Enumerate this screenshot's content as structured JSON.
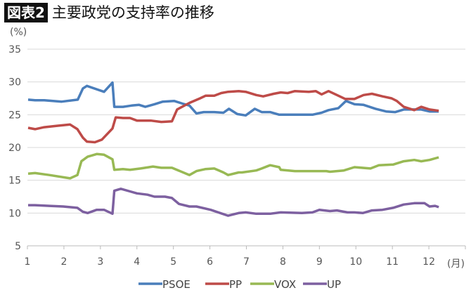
{
  "header": {
    "badge": "図表2",
    "title": "主要政党の支持率の推移"
  },
  "chart_data": {
    "type": "line",
    "title": "主要政党の支持率の推移",
    "ylabel": "(%)",
    "xlabel": "(月)",
    "ylim": [
      5,
      35
    ],
    "yticks": [
      "5",
      "10",
      "15",
      "20",
      "25",
      "30",
      "35"
    ],
    "xlim": [
      1,
      13
    ],
    "xticks": [
      "1",
      "2",
      "3",
      "4",
      "5",
      "6",
      "7",
      "8",
      "9",
      "10",
      "11",
      "12"
    ],
    "grid": true,
    "legend": "bottom",
    "series": [
      {
        "name": "PSOE",
        "color": "#4a7ebb",
        "points": [
          [
            1.02,
            27.3
          ],
          [
            1.21,
            27.2
          ],
          [
            1.46,
            27.2
          ],
          [
            1.94,
            27.0
          ],
          [
            2.38,
            27.3
          ],
          [
            2.52,
            29.0
          ],
          [
            2.63,
            29.4
          ],
          [
            3.1,
            28.5
          ],
          [
            3.33,
            29.9
          ],
          [
            3.38,
            26.2
          ],
          [
            3.62,
            26.2
          ],
          [
            3.85,
            26.4
          ],
          [
            4.06,
            26.5
          ],
          [
            4.23,
            26.2
          ],
          [
            4.48,
            26.6
          ],
          [
            4.71,
            27.0
          ],
          [
            5.02,
            27.1
          ],
          [
            5.25,
            26.7
          ],
          [
            5.44,
            26.4
          ],
          [
            5.63,
            25.2
          ],
          [
            5.83,
            25.4
          ],
          [
            6.12,
            25.4
          ],
          [
            6.37,
            25.3
          ],
          [
            6.52,
            25.9
          ],
          [
            6.75,
            25.1
          ],
          [
            6.98,
            24.9
          ],
          [
            7.23,
            25.9
          ],
          [
            7.42,
            25.4
          ],
          [
            7.65,
            25.4
          ],
          [
            7.9,
            25.0
          ],
          [
            8.81,
            25.0
          ],
          [
            9.06,
            25.3
          ],
          [
            9.25,
            25.7
          ],
          [
            9.52,
            26.0
          ],
          [
            9.73,
            27.1
          ],
          [
            9.96,
            26.6
          ],
          [
            10.21,
            26.5
          ],
          [
            10.54,
            25.9
          ],
          [
            10.83,
            25.5
          ],
          [
            11.08,
            25.4
          ],
          [
            11.31,
            25.8
          ],
          [
            11.79,
            25.8
          ],
          [
            12.02,
            25.5
          ],
          [
            12.27,
            25.5
          ]
        ]
      },
      {
        "name": "PP",
        "color": "#be4b48",
        "points": [
          [
            1.02,
            23.0
          ],
          [
            1.21,
            22.8
          ],
          [
            1.46,
            23.1
          ],
          [
            1.79,
            23.3
          ],
          [
            2.17,
            23.5
          ],
          [
            2.37,
            22.8
          ],
          [
            2.52,
            21.5
          ],
          [
            2.63,
            20.9
          ],
          [
            2.85,
            20.8
          ],
          [
            3.04,
            21.2
          ],
          [
            3.33,
            22.9
          ],
          [
            3.42,
            24.6
          ],
          [
            3.62,
            24.5
          ],
          [
            3.81,
            24.5
          ],
          [
            4.0,
            24.1
          ],
          [
            4.38,
            24.1
          ],
          [
            4.67,
            23.9
          ],
          [
            4.96,
            24.0
          ],
          [
            5.1,
            25.8
          ],
          [
            5.44,
            26.8
          ],
          [
            5.73,
            27.5
          ],
          [
            5.88,
            27.9
          ],
          [
            6.12,
            27.9
          ],
          [
            6.31,
            28.3
          ],
          [
            6.5,
            28.5
          ],
          [
            6.79,
            28.6
          ],
          [
            6.98,
            28.5
          ],
          [
            7.27,
            28.0
          ],
          [
            7.46,
            27.8
          ],
          [
            7.75,
            28.2
          ],
          [
            7.94,
            28.4
          ],
          [
            8.13,
            28.3
          ],
          [
            8.33,
            28.6
          ],
          [
            8.71,
            28.5
          ],
          [
            8.9,
            28.6
          ],
          [
            9.06,
            28.1
          ],
          [
            9.25,
            28.6
          ],
          [
            9.48,
            28.0
          ],
          [
            9.71,
            27.4
          ],
          [
            9.96,
            27.4
          ],
          [
            10.21,
            28.0
          ],
          [
            10.44,
            28.2
          ],
          [
            10.73,
            27.8
          ],
          [
            10.98,
            27.5
          ],
          [
            11.12,
            27.1
          ],
          [
            11.31,
            26.2
          ],
          [
            11.6,
            25.7
          ],
          [
            11.79,
            26.2
          ],
          [
            12.02,
            25.8
          ],
          [
            12.27,
            25.6
          ]
        ]
      },
      {
        "name": "VOX",
        "color": "#98b954",
        "points": [
          [
            1.02,
            16.0
          ],
          [
            1.21,
            16.1
          ],
          [
            1.6,
            15.8
          ],
          [
            2.17,
            15.3
          ],
          [
            2.37,
            15.8
          ],
          [
            2.48,
            17.9
          ],
          [
            2.65,
            18.6
          ],
          [
            2.9,
            19.0
          ],
          [
            3.1,
            18.9
          ],
          [
            3.33,
            18.2
          ],
          [
            3.38,
            16.6
          ],
          [
            3.62,
            16.7
          ],
          [
            3.81,
            16.6
          ],
          [
            4.1,
            16.8
          ],
          [
            4.44,
            17.1
          ],
          [
            4.67,
            16.9
          ],
          [
            4.96,
            16.9
          ],
          [
            5.44,
            15.8
          ],
          [
            5.63,
            16.4
          ],
          [
            5.87,
            16.7
          ],
          [
            6.12,
            16.8
          ],
          [
            6.37,
            16.2
          ],
          [
            6.5,
            15.8
          ],
          [
            6.79,
            16.2
          ],
          [
            6.88,
            16.2
          ],
          [
            7.27,
            16.5
          ],
          [
            7.42,
            16.8
          ],
          [
            7.65,
            17.3
          ],
          [
            7.9,
            17.0
          ],
          [
            7.94,
            16.6
          ],
          [
            8.33,
            16.4
          ],
          [
            9.19,
            16.4
          ],
          [
            9.29,
            16.3
          ],
          [
            9.67,
            16.5
          ],
          [
            9.96,
            17.0
          ],
          [
            10.4,
            16.8
          ],
          [
            10.63,
            17.3
          ],
          [
            11.02,
            17.4
          ],
          [
            11.31,
            17.9
          ],
          [
            11.6,
            18.1
          ],
          [
            11.79,
            17.9
          ],
          [
            12.02,
            18.1
          ],
          [
            12.27,
            18.5
          ]
        ]
      },
      {
        "name": "UP",
        "color": "#7d60a0",
        "points": [
          [
            1.02,
            11.2
          ],
          [
            1.21,
            11.2
          ],
          [
            1.6,
            11.1
          ],
          [
            1.98,
            11.0
          ],
          [
            2.37,
            10.8
          ],
          [
            2.52,
            10.2
          ],
          [
            2.65,
            10.0
          ],
          [
            2.9,
            10.5
          ],
          [
            3.1,
            10.5
          ],
          [
            3.33,
            9.9
          ],
          [
            3.38,
            13.4
          ],
          [
            3.56,
            13.7
          ],
          [
            3.81,
            13.3
          ],
          [
            4.0,
            13.0
          ],
          [
            4.29,
            12.8
          ],
          [
            4.48,
            12.5
          ],
          [
            4.77,
            12.5
          ],
          [
            4.96,
            12.3
          ],
          [
            5.15,
            11.4
          ],
          [
            5.44,
            11.0
          ],
          [
            5.63,
            11.0
          ],
          [
            6.02,
            10.5
          ],
          [
            6.5,
            9.6
          ],
          [
            6.79,
            10.0
          ],
          [
            6.98,
            10.1
          ],
          [
            7.27,
            9.9
          ],
          [
            7.65,
            9.9
          ],
          [
            7.94,
            10.1
          ],
          [
            8.52,
            10.0
          ],
          [
            8.81,
            10.1
          ],
          [
            9.0,
            10.5
          ],
          [
            9.29,
            10.3
          ],
          [
            9.48,
            10.4
          ],
          [
            9.77,
            10.1
          ],
          [
            9.96,
            10.1
          ],
          [
            10.19,
            10.0
          ],
          [
            10.44,
            10.4
          ],
          [
            10.73,
            10.5
          ],
          [
            11.02,
            10.8
          ],
          [
            11.31,
            11.3
          ],
          [
            11.6,
            11.5
          ],
          [
            11.88,
            11.5
          ],
          [
            12.02,
            11.0
          ],
          [
            12.17,
            11.1
          ],
          [
            12.27,
            10.9
          ]
        ]
      }
    ]
  }
}
